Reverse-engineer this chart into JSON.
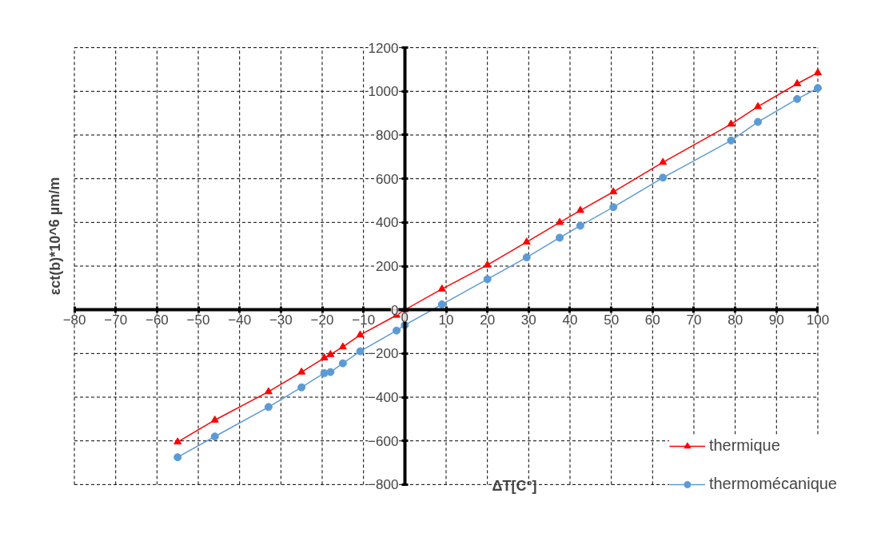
{
  "chart_data": {
    "type": "line",
    "xlabel": "ΔT[C°]",
    "ylabel": "εct(b)*10^6 µm/m",
    "xlim": [
      -80,
      100
    ],
    "ylim": [
      -800,
      1200
    ],
    "xticks": [
      -80,
      -70,
      -60,
      -50,
      -40,
      -30,
      -20,
      -10,
      0,
      10,
      20,
      30,
      40,
      50,
      60,
      70,
      80,
      90,
      100
    ],
    "yticks": [
      -800,
      -600,
      -400,
      -200,
      0,
      200,
      400,
      600,
      800,
      1000,
      1200
    ],
    "grid": true,
    "legend": "bottom right",
    "series": [
      {
        "name": "thermique",
        "color": "#ff0000",
        "marker": "triangle",
        "x": [
          -55,
          -46,
          -33,
          -25,
          -19.5,
          -18,
          -15,
          -10.8,
          -2,
          0,
          9,
          20,
          29.5,
          37.5,
          42.5,
          50.5,
          62.5,
          79,
          85.5,
          95,
          100
        ],
        "values": [
          -605,
          -505,
          -375,
          -285,
          -220,
          -205,
          -170,
          -115,
          -25,
          0,
          95,
          205,
          310,
          400,
          455,
          540,
          675,
          850,
          930,
          1035,
          1085
        ]
      },
      {
        "name": "thermomécanique",
        "color": "#5b9bd5",
        "marker": "circle",
        "x": [
          -55,
          -46,
          -33,
          -25,
          -19.5,
          -18,
          -15,
          -10.8,
          -2,
          0,
          9,
          20,
          29.5,
          37.5,
          42.5,
          50.5,
          62.5,
          79,
          85.5,
          95,
          100
        ],
        "values": [
          -675,
          -580,
          -445,
          -355,
          -290,
          -285,
          -245,
          -190,
          -95,
          -70,
          25,
          140,
          240,
          330,
          385,
          470,
          605,
          775,
          860,
          965,
          1015
        ]
      }
    ]
  }
}
